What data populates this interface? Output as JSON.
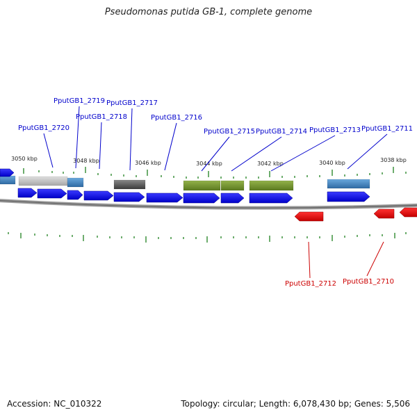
{
  "title": "Pseudomonas putida GB-1, complete genome",
  "footer": {
    "accession": "Accession: NC_010322",
    "summary": "Topology: circular; Length: 6,078,430 bp; Genes: 5,506"
  },
  "colors": {
    "forward_gene": "#0000ee",
    "reverse_gene": "#ee0000",
    "forward_label": "#0000cc",
    "reverse_label": "#cc0000",
    "tick": "#2f8a2f",
    "backbone": "#888888",
    "feature_blue": "#3c78b4",
    "feature_gray": "#bdbdbd",
    "feature_dark": "#5a5a5a",
    "feature_olive": "#6f8f2c"
  },
  "map": {
    "position_labels": [
      "3050 kbp",
      "3048 kbp",
      "3046 kbp",
      "3044 kbp",
      "3042 kbp",
      "3040 kbp",
      "3038 kbp"
    ],
    "forward_genes": [
      "PputGB1_2720",
      "PputGB1_2719",
      "PputGB1_2718",
      "PputGB1_2717",
      "PputGB1_2716",
      "PputGB1_2715",
      "PputGB1_2714",
      "PputGB1_2713",
      "PputGB1_2711"
    ],
    "reverse_genes": [
      "PputGB1_2712",
      "PputGB1_2710"
    ]
  }
}
